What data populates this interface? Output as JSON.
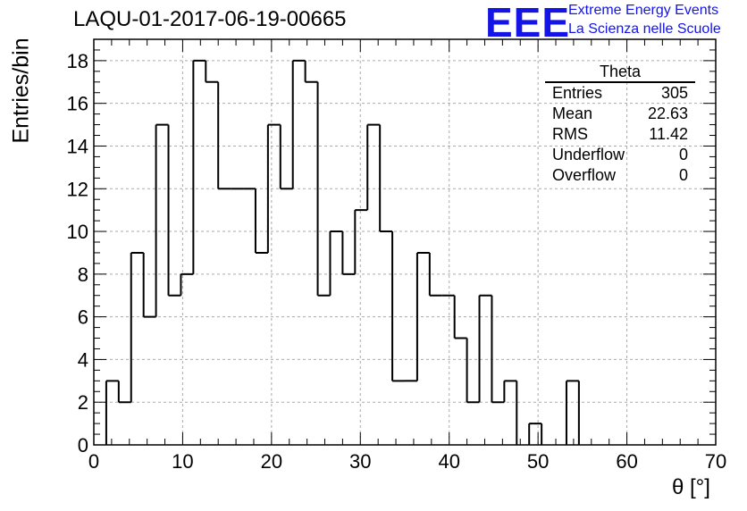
{
  "header": {
    "title": "LAQU-01-2017-06-19-00665",
    "logo": {
      "mark": "EEE",
      "line1": "Extreme Energy Events",
      "line2": "La Scienza nelle Scuole"
    }
  },
  "stats_box": {
    "name": "Theta",
    "rows": [
      {
        "label": "Entries",
        "value": "305"
      },
      {
        "label": "Mean",
        "value": "22.63"
      },
      {
        "label": "RMS",
        "value": "11.42"
      },
      {
        "label": "Underflow",
        "value": "0"
      },
      {
        "label": "Overflow",
        "value": "0"
      }
    ]
  },
  "chart_data": {
    "type": "bar",
    "subtype": "histogram-step",
    "title": "LAQU-01-2017-06-19-00665",
    "xlabel": "θ [°]",
    "ylabel": "Entries/bin",
    "xlim": [
      0,
      70
    ],
    "ylim": [
      0,
      19
    ],
    "bin_width": 1.4,
    "x_ticks": [
      0,
      10,
      20,
      30,
      40,
      50,
      60,
      70
    ],
    "y_ticks": [
      0,
      2,
      4,
      6,
      8,
      10,
      12,
      14,
      16,
      18
    ],
    "grid": true,
    "legend_position": "top-right",
    "colors": {
      "line": "#000000",
      "grid": "#aaaaaa",
      "logo": "#1414e6"
    },
    "bin_edges_start": 0,
    "counts": [
      0,
      3,
      2,
      9,
      6,
      15,
      7,
      8,
      18,
      17,
      12,
      12,
      12,
      9,
      15,
      12,
      18,
      17,
      7,
      10,
      8,
      11,
      15,
      10,
      3,
      3,
      9,
      7,
      7,
      5,
      2,
      7,
      2,
      3,
      0,
      1,
      0,
      0,
      3,
      0,
      0,
      0,
      0,
      0,
      0,
      0,
      0,
      0,
      0,
      0
    ]
  }
}
